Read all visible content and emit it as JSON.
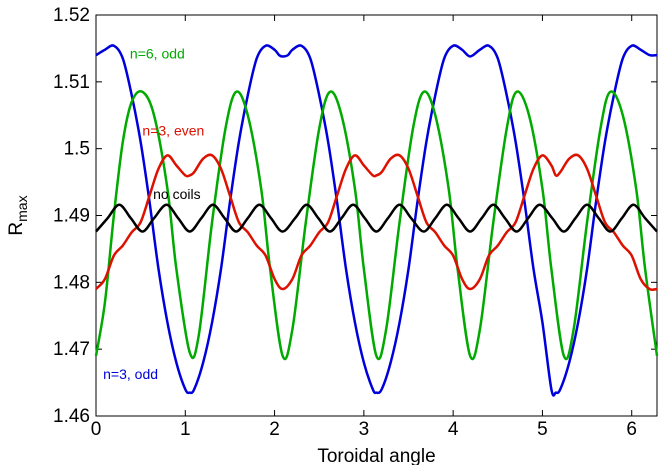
{
  "chart_data": {
    "type": "line",
    "xlabel": "Toroidal angle",
    "ylabel": {
      "main": "R",
      "sub": "max"
    },
    "xlim": [
      0,
      6.2832
    ],
    "ylim": [
      1.46,
      1.52
    ],
    "xticks": [
      0,
      1,
      2,
      3,
      4,
      5,
      6
    ],
    "xtick_labels": [
      "0",
      "1",
      "2",
      "3",
      "4",
      "5",
      "6"
    ],
    "yticks": [
      1.46,
      1.47,
      1.48,
      1.49,
      1.5,
      1.51,
      1.52
    ],
    "ytick_labels": [
      "1.46",
      "1.47",
      "1.48",
      "1.49",
      "1.5",
      "1.51",
      "1.52"
    ],
    "grid": false,
    "series": [
      {
        "name": "n=3, odd",
        "color": "#0000dd",
        "x": [
          0.0,
          0.1,
          0.2,
          0.3,
          0.4,
          0.5,
          0.6,
          0.7,
          0.8,
          0.9,
          1.0,
          1.05,
          1.1,
          1.2,
          1.3,
          1.4,
          1.5,
          1.6,
          1.7,
          1.8,
          1.9,
          2.0,
          2.05,
          2.09,
          2.15,
          2.2,
          2.3,
          2.4,
          2.5,
          2.6,
          2.7,
          2.8,
          2.9,
          3.0,
          3.1,
          3.14,
          3.2,
          3.3,
          3.4,
          3.5,
          3.6,
          3.7,
          3.8,
          3.9,
          4.0,
          4.1,
          4.19,
          4.3,
          4.4,
          4.5,
          4.6,
          4.7,
          4.8,
          4.9,
          5.0,
          5.1,
          5.15,
          5.2,
          5.3,
          5.4,
          5.5,
          5.6,
          5.7,
          5.8,
          5.9,
          6.0,
          6.1,
          6.2,
          6.2832
        ],
        "y": [
          1.514,
          1.5148,
          1.5154,
          1.5135,
          1.508,
          1.501,
          1.492,
          1.482,
          1.474,
          1.468,
          1.464,
          1.4635,
          1.464,
          1.468,
          1.474,
          1.482,
          1.492,
          1.501,
          1.508,
          1.5135,
          1.5154,
          1.5148,
          1.514,
          1.5138,
          1.514,
          1.5148,
          1.5154,
          1.5135,
          1.508,
          1.501,
          1.492,
          1.482,
          1.474,
          1.468,
          1.464,
          1.4635,
          1.464,
          1.468,
          1.474,
          1.482,
          1.492,
          1.501,
          1.508,
          1.5135,
          1.5154,
          1.5148,
          1.5138,
          1.5148,
          1.5154,
          1.5135,
          1.508,
          1.501,
          1.492,
          1.482,
          1.474,
          1.464,
          1.4635,
          1.464,
          1.468,
          1.474,
          1.482,
          1.492,
          1.501,
          1.508,
          1.5135,
          1.5154,
          1.5148,
          1.514,
          1.514
        ]
      },
      {
        "name": "n=6, odd",
        "color": "#00aa00",
        "x": [
          0.0,
          0.1,
          0.2,
          0.3,
          0.4,
          0.52,
          0.65,
          0.8,
          0.9,
          1.05,
          1.15,
          1.3,
          1.45,
          1.57,
          1.7,
          1.85,
          1.95,
          2.09,
          2.2,
          2.35,
          2.5,
          2.62,
          2.75,
          2.9,
          3.0,
          3.14,
          3.25,
          3.4,
          3.55,
          3.67,
          3.8,
          3.95,
          4.05,
          4.19,
          4.3,
          4.45,
          4.6,
          4.71,
          4.85,
          5.0,
          5.1,
          5.24,
          5.35,
          5.5,
          5.65,
          5.76,
          5.9,
          6.05,
          6.15,
          6.2832
        ],
        "y": [
          1.469,
          1.477,
          1.49,
          1.501,
          1.507,
          1.5085,
          1.505,
          1.494,
          1.482,
          1.4695,
          1.472,
          1.489,
          1.503,
          1.5085,
          1.505,
          1.494,
          1.482,
          1.469,
          1.473,
          1.489,
          1.503,
          1.5085,
          1.505,
          1.494,
          1.482,
          1.469,
          1.473,
          1.489,
          1.503,
          1.5085,
          1.505,
          1.494,
          1.482,
          1.469,
          1.473,
          1.489,
          1.503,
          1.5085,
          1.505,
          1.494,
          1.482,
          1.469,
          1.473,
          1.489,
          1.503,
          1.5085,
          1.505,
          1.494,
          1.482,
          1.469
        ]
      },
      {
        "name": "n=3, even",
        "color": "#dd1100",
        "x": [
          0.0,
          0.1,
          0.2,
          0.3,
          0.4,
          0.5,
          0.6,
          0.7,
          0.8,
          0.9,
          1.0,
          1.05,
          1.1,
          1.2,
          1.3,
          1.4,
          1.5,
          1.6,
          1.7,
          1.8,
          1.9,
          2.0,
          2.09,
          2.2,
          2.3,
          2.4,
          2.5,
          2.6,
          2.7,
          2.8,
          2.9,
          3.0,
          3.1,
          3.14,
          3.2,
          3.3,
          3.4,
          3.5,
          3.6,
          3.7,
          3.8,
          3.9,
          4.0,
          4.1,
          4.19,
          4.3,
          4.4,
          4.5,
          4.6,
          4.7,
          4.8,
          4.9,
          5.0,
          5.1,
          5.15,
          5.2,
          5.3,
          5.4,
          5.5,
          5.6,
          5.7,
          5.8,
          5.9,
          6.0,
          6.1,
          6.2,
          6.2832
        ],
        "y": [
          1.479,
          1.4805,
          1.484,
          1.4855,
          1.4875,
          1.489,
          1.493,
          1.497,
          1.499,
          1.4975,
          1.496,
          1.496,
          1.4965,
          1.4985,
          1.499,
          1.497,
          1.493,
          1.489,
          1.4875,
          1.4855,
          1.484,
          1.4805,
          1.479,
          1.4805,
          1.484,
          1.4855,
          1.4875,
          1.489,
          1.493,
          1.497,
          1.499,
          1.4975,
          1.496,
          1.496,
          1.4965,
          1.4985,
          1.499,
          1.497,
          1.493,
          1.489,
          1.4875,
          1.4855,
          1.484,
          1.4805,
          1.479,
          1.4805,
          1.484,
          1.4855,
          1.4875,
          1.489,
          1.493,
          1.497,
          1.499,
          1.4975,
          1.496,
          1.4965,
          1.4985,
          1.499,
          1.497,
          1.493,
          1.489,
          1.4875,
          1.4855,
          1.484,
          1.4805,
          1.479,
          1.479
        ]
      },
      {
        "name": "no coils",
        "color": "#000000",
        "x": [
          0.0,
          0.13,
          0.26,
          0.39,
          0.52,
          0.65,
          0.79,
          0.92,
          1.05,
          1.18,
          1.31,
          1.44,
          1.57,
          1.7,
          1.83,
          1.96,
          2.09,
          2.23,
          2.36,
          2.49,
          2.62,
          2.75,
          2.88,
          3.01,
          3.14,
          3.27,
          3.4,
          3.53,
          3.67,
          3.8,
          3.93,
          4.06,
          4.19,
          4.32,
          4.45,
          4.58,
          4.71,
          4.84,
          4.97,
          5.11,
          5.24,
          5.37,
          5.5,
          5.63,
          5.76,
          5.89,
          6.02,
          6.15,
          6.2832
        ],
        "y": [
          1.4876,
          1.4896,
          1.4916,
          1.4896,
          1.4876,
          1.4896,
          1.4916,
          1.4896,
          1.4876,
          1.4896,
          1.4916,
          1.4896,
          1.4876,
          1.4896,
          1.4916,
          1.4896,
          1.4876,
          1.4896,
          1.4916,
          1.4896,
          1.4876,
          1.4896,
          1.4916,
          1.4896,
          1.4876,
          1.4896,
          1.4916,
          1.4896,
          1.4876,
          1.4896,
          1.4916,
          1.4896,
          1.4876,
          1.4896,
          1.4916,
          1.4896,
          1.4876,
          1.4896,
          1.4916,
          1.4896,
          1.4876,
          1.4896,
          1.4916,
          1.4896,
          1.4876,
          1.4896,
          1.4916,
          1.4896,
          1.4876
        ]
      }
    ],
    "annotations": [
      {
        "text": "n=6, odd",
        "color": "#00aa00",
        "x": 0.38,
        "y": 1.5135
      },
      {
        "text": "n=3, even",
        "color": "#dd1100",
        "x": 0.52,
        "y": 1.502
      },
      {
        "text": "no coils",
        "color": "#000000",
        "x": 0.64,
        "y": 1.4925
      },
      {
        "text": "n=3, odd",
        "color": "#0000dd",
        "x": 0.08,
        "y": 1.4655
      }
    ]
  }
}
